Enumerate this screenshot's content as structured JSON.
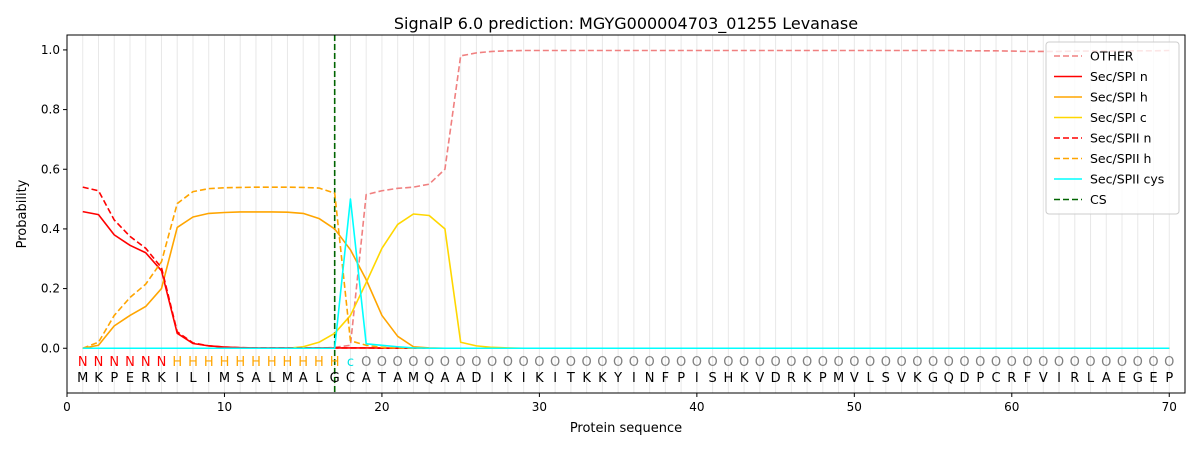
{
  "chart_data": {
    "type": "line",
    "title": "SignalP 6.0 prediction: MGYG000004703_01255 Levanase",
    "xlabel": "Protein sequence",
    "ylabel": "Probability",
    "xlim": [
      0,
      71
    ],
    "ylim": [
      -0.15,
      1.05
    ],
    "xticks": [
      0,
      10,
      20,
      30,
      40,
      50,
      60,
      70
    ],
    "yticks": [
      0.0,
      0.2,
      0.4,
      0.6,
      0.8,
      1.0
    ],
    "xtick_labels": [
      "0",
      "10",
      "20",
      "30",
      "40",
      "50",
      "60",
      "70"
    ],
    "ytick_labels": [
      "0.0",
      "0.2",
      "0.4",
      "0.6",
      "0.8",
      "1.0"
    ],
    "legend_position": "top-right",
    "sequence": "MKPERKILIMSALMALGCATAMQAADIKIKITKKYINFPISHKVDRKPMVLSVKGQDPCRFVIRLAEGEP",
    "annotation": "NNNNNNHHHHHHHHHHHcOOOOOOOOOOOOOOOOOOOOOOOOOOOOOOOOOOOOOOOOOOOOOOOOOOOO",
    "annotation_colors": {
      "N": "#ff0000",
      "H": "#ffa500",
      "c": "#00e5e5",
      "O": "#808080"
    },
    "cs_position": 17,
    "series": [
      {
        "name": "OTHER",
        "color": "#f08080",
        "dash": "dashed",
        "values": [
          0.0,
          0.0,
          0.0,
          0.0,
          0.0,
          0.0,
          0.0,
          0.0,
          0.0,
          0.0,
          0.0,
          0.0,
          0.0,
          0.0,
          0.0,
          0.0,
          0.003,
          0.01,
          0.515,
          0.528,
          0.536,
          0.54,
          0.55,
          0.6,
          0.98,
          0.99,
          0.995,
          0.997,
          0.998,
          0.998,
          0.998,
          0.998,
          0.998,
          0.998,
          0.998,
          0.998,
          0.998,
          0.998,
          0.998,
          0.998,
          0.998,
          0.998,
          0.998,
          0.998,
          0.998,
          0.998,
          0.998,
          0.998,
          0.998,
          0.998,
          0.998,
          0.998,
          0.998,
          0.998,
          0.998,
          0.998,
          0.997,
          0.997,
          0.997,
          0.996,
          0.995,
          0.995,
          0.995,
          0.996,
          0.996,
          0.996,
          0.997,
          0.997,
          0.997,
          0.998
        ]
      },
      {
        "name": "Sec/SPI n",
        "color": "#ff0000",
        "dash": "solid",
        "values": [
          0.458,
          0.448,
          0.38,
          0.345,
          0.32,
          0.26,
          0.05,
          0.016,
          0.008,
          0.004,
          0.002,
          0.001,
          0.001,
          0.001,
          0.001,
          0.001,
          0.001,
          0.001,
          0.001,
          0.001,
          0.0,
          0.0,
          0.0,
          0.0,
          0.0,
          0.0,
          0.0,
          0.0,
          0.0,
          0.0,
          0.0,
          0.0,
          0.0,
          0.0,
          0.0,
          0.0,
          0.0,
          0.0,
          0.0,
          0.0,
          0.0,
          0.0,
          0.0,
          0.0,
          0.0,
          0.0,
          0.0,
          0.0,
          0.0,
          0.0,
          0.0,
          0.0,
          0.0,
          0.0,
          0.0,
          0.0,
          0.0,
          0.0,
          0.0,
          0.0,
          0.0,
          0.0,
          0.0,
          0.0,
          0.0,
          0.0,
          0.0,
          0.0,
          0.0,
          0.0
        ]
      },
      {
        "name": "Sec/SPI h",
        "color": "#ffa500",
        "dash": "solid",
        "values": [
          0.0,
          0.01,
          0.075,
          0.11,
          0.14,
          0.2,
          0.405,
          0.44,
          0.452,
          0.455,
          0.457,
          0.457,
          0.457,
          0.456,
          0.452,
          0.435,
          0.4,
          0.33,
          0.23,
          0.11,
          0.04,
          0.005,
          0.001,
          0.0,
          0.0,
          0.0,
          0.0,
          0.0,
          0.0,
          0.0,
          0.0,
          0.0,
          0.0,
          0.0,
          0.0,
          0.0,
          0.0,
          0.0,
          0.0,
          0.0,
          0.0,
          0.0,
          0.0,
          0.0,
          0.0,
          0.0,
          0.0,
          0.0,
          0.0,
          0.0,
          0.0,
          0.0,
          0.0,
          0.0,
          0.0,
          0.0,
          0.0,
          0.0,
          0.0,
          0.0,
          0.0,
          0.0,
          0.0,
          0.0,
          0.0,
          0.0,
          0.0,
          0.0,
          0.0,
          0.0
        ]
      },
      {
        "name": "Sec/SPI c",
        "color": "#ffd700",
        "dash": "solid",
        "values": [
          0.0,
          0.0,
          0.0,
          0.0,
          0.0,
          0.0,
          0.0,
          0.0,
          0.0,
          0.0,
          0.0,
          0.0,
          0.0,
          0.0,
          0.005,
          0.02,
          0.05,
          0.11,
          0.22,
          0.335,
          0.415,
          0.45,
          0.445,
          0.4,
          0.02,
          0.008,
          0.003,
          0.001,
          0.0,
          0.0,
          0.0,
          0.0,
          0.0,
          0.0,
          0.0,
          0.0,
          0.0,
          0.0,
          0.0,
          0.0,
          0.0,
          0.0,
          0.0,
          0.0,
          0.0,
          0.0,
          0.0,
          0.0,
          0.0,
          0.0,
          0.0,
          0.0,
          0.0,
          0.0,
          0.0,
          0.0,
          0.0,
          0.0,
          0.0,
          0.0,
          0.0,
          0.0,
          0.0,
          0.0,
          0.0,
          0.0,
          0.0,
          0.0,
          0.0,
          0.0
        ]
      },
      {
        "name": "Sec/SPII n",
        "color": "#ff0000",
        "dash": "dashed",
        "values": [
          0.54,
          0.528,
          0.43,
          0.375,
          0.335,
          0.27,
          0.055,
          0.018,
          0.008,
          0.004,
          0.002,
          0.001,
          0.001,
          0.001,
          0.001,
          0.001,
          0.001,
          0.001,
          0.001,
          0.0,
          0.0,
          0.0,
          0.0,
          0.0,
          0.0,
          0.0,
          0.0,
          0.0,
          0.0,
          0.0,
          0.0,
          0.0,
          0.0,
          0.0,
          0.0,
          0.0,
          0.0,
          0.0,
          0.0,
          0.0,
          0.0,
          0.0,
          0.0,
          0.0,
          0.0,
          0.0,
          0.0,
          0.0,
          0.0,
          0.0,
          0.0,
          0.0,
          0.0,
          0.0,
          0.0,
          0.0,
          0.0,
          0.0,
          0.0,
          0.0,
          0.0,
          0.0,
          0.0,
          0.0,
          0.0,
          0.0,
          0.0,
          0.0,
          0.0,
          0.0
        ]
      },
      {
        "name": "Sec/SPII h",
        "color": "#ffa500",
        "dash": "dashed",
        "values": [
          0.0,
          0.02,
          0.11,
          0.17,
          0.215,
          0.29,
          0.485,
          0.525,
          0.535,
          0.538,
          0.539,
          0.54,
          0.54,
          0.54,
          0.539,
          0.537,
          0.52,
          0.025,
          0.01,
          0.003,
          0.001,
          0.0,
          0.0,
          0.0,
          0.0,
          0.0,
          0.0,
          0.0,
          0.0,
          0.0,
          0.0,
          0.0,
          0.0,
          0.0,
          0.0,
          0.0,
          0.0,
          0.0,
          0.0,
          0.0,
          0.0,
          0.0,
          0.0,
          0.0,
          0.0,
          0.0,
          0.0,
          0.0,
          0.0,
          0.0,
          0.0,
          0.0,
          0.0,
          0.0,
          0.0,
          0.0,
          0.0,
          0.0,
          0.0,
          0.0,
          0.0,
          0.0,
          0.0,
          0.0,
          0.0,
          0.0,
          0.0,
          0.0,
          0.0,
          0.0
        ]
      },
      {
        "name": "Sec/SPII cys",
        "color": "#00ffff",
        "dash": "solid",
        "values": [
          0.0,
          0.0,
          0.0,
          0.0,
          0.0,
          0.0,
          0.0,
          0.0,
          0.0,
          0.0,
          0.0,
          0.0,
          0.0,
          0.0,
          0.0,
          0.0,
          0.0,
          0.5,
          0.015,
          0.01,
          0.005,
          0.001,
          0.0,
          0.0,
          0.0,
          0.0,
          0.0,
          0.0,
          0.0,
          0.0,
          0.0,
          0.0,
          0.0,
          0.0,
          0.0,
          0.0,
          0.0,
          0.0,
          0.0,
          0.0,
          0.0,
          0.0,
          0.0,
          0.0,
          0.0,
          0.0,
          0.0,
          0.0,
          0.0,
          0.0,
          0.0,
          0.0,
          0.0,
          0.0,
          0.0,
          0.0,
          0.0,
          0.0,
          0.0,
          0.0,
          0.0,
          0.0,
          0.0,
          0.0,
          0.0,
          0.0,
          0.0,
          0.0,
          0.0,
          0.0
        ]
      }
    ],
    "cs_legend": {
      "name": "CS",
      "color": "#006400",
      "dash": "dashed"
    }
  }
}
